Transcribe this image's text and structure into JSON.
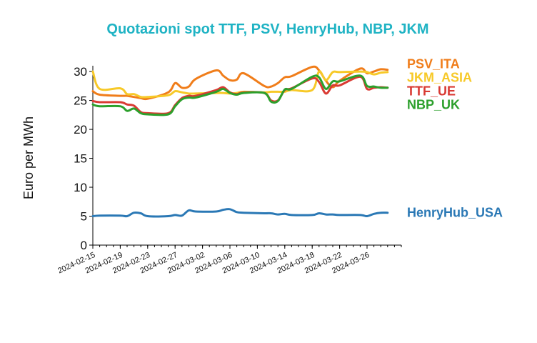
{
  "chart_data": {
    "type": "line",
    "title": "Quotazioni spot TTF, PSV, HenryHub, NBP, JKM",
    "xlabel": "",
    "ylabel": "Euro per MWh",
    "xlim": [
      "2024-02-15",
      "2024-03-31"
    ],
    "ylim": [
      0,
      31
    ],
    "yticks": [
      0,
      5,
      10,
      15,
      20,
      25,
      30
    ],
    "xticks": [
      "2024-02-15",
      "2024-02-19",
      "2024-02-23",
      "2024-02-27",
      "2024-03-02",
      "2024-03-06",
      "2024-03-10",
      "2024-03-14",
      "2024-03-18",
      "2024-03-22",
      "2024-03-26"
    ],
    "grid": false,
    "legend": "series names printed at the right end of each line",
    "colors": {
      "title": "#1fb3c4",
      "PSV_ITA": "#f07d1a",
      "JKM_ASIA": "#f7c928",
      "TTF_UE": "#d93a33",
      "NBP_UK": "#2ca02c",
      "HenryHub_USA": "#2a78b5"
    },
    "x": [
      "2024-02-15",
      "2024-02-16",
      "2024-02-19",
      "2024-02-20",
      "2024-02-21",
      "2024-02-22",
      "2024-02-23",
      "2024-02-26",
      "2024-02-27",
      "2024-02-28",
      "2024-02-29",
      "2024-03-01",
      "2024-03-04",
      "2024-03-05",
      "2024-03-06",
      "2024-03-07",
      "2024-03-08",
      "2024-03-11",
      "2024-03-12",
      "2024-03-13",
      "2024-03-14",
      "2024-03-15",
      "2024-03-18",
      "2024-03-19",
      "2024-03-20",
      "2024-03-21",
      "2024-03-22",
      "2024-03-25",
      "2024-03-26",
      "2024-03-27",
      "2024-03-28",
      "2024-03-29"
    ],
    "series": [
      {
        "name": "PSV_ITA",
        "color": "#f07d1a",
        "values": [
          26.6,
          26.0,
          25.8,
          25.8,
          25.6,
          25.4,
          25.3,
          26.4,
          28.0,
          27.2,
          27.4,
          28.7,
          30.2,
          29.3,
          28.5,
          28.6,
          29.7,
          27.5,
          27.4,
          28.0,
          29.0,
          29.2,
          30.8,
          30.2,
          28.4,
          27.3,
          28.4,
          30.5,
          29.7,
          30.0,
          30.4,
          30.3
        ]
      },
      {
        "name": "JKM_ASIA",
        "color": "#f7c928",
        "values": [
          30.0,
          27.0,
          27.1,
          26.1,
          26.1,
          25.6,
          25.6,
          25.9,
          26.6,
          26.4,
          26.2,
          26.2,
          26.3,
          26.3,
          26.2,
          26.3,
          26.5,
          26.4,
          26.5,
          26.5,
          26.5,
          26.8,
          26.8,
          30.0,
          28.5,
          29.9,
          29.9,
          30.0,
          29.9,
          29.5,
          29.8,
          29.9
        ]
      },
      {
        "name": "TTF_UE",
        "color": "#d93a33",
        "values": [
          24.9,
          24.7,
          24.7,
          24.3,
          24.1,
          23.0,
          22.8,
          22.8,
          24.2,
          25.4,
          25.8,
          25.8,
          26.8,
          27.3,
          26.4,
          26.1,
          26.4,
          26.3,
          25.0,
          25.0,
          26.8,
          27.1,
          28.8,
          28.2,
          26.2,
          27.6,
          27.6,
          29.1,
          27.0,
          27.2,
          27.3,
          27.2
        ]
      },
      {
        "name": "NBP_UK",
        "color": "#2ca02c",
        "values": [
          24.3,
          24.0,
          24.0,
          23.2,
          23.6,
          22.8,
          22.6,
          22.6,
          24.0,
          25.2,
          25.5,
          25.5,
          26.5,
          27.0,
          26.3,
          26.0,
          26.3,
          26.3,
          24.8,
          24.9,
          26.9,
          27.0,
          29.1,
          29.0,
          27.0,
          28.3,
          28.3,
          29.3,
          27.5,
          27.4,
          27.2,
          27.2
        ]
      },
      {
        "name": "HenryHub_USA",
        "color": "#2a78b5",
        "values": [
          5.0,
          5.1,
          5.1,
          5.0,
          5.6,
          5.5,
          5.0,
          5.0,
          5.2,
          5.1,
          6.0,
          5.8,
          5.8,
          6.1,
          6.2,
          5.7,
          5.6,
          5.5,
          5.5,
          5.3,
          5.4,
          5.2,
          5.2,
          5.5,
          5.3,
          5.3,
          5.2,
          5.2,
          5.0,
          5.4,
          5.6,
          5.6
        ]
      }
    ]
  }
}
